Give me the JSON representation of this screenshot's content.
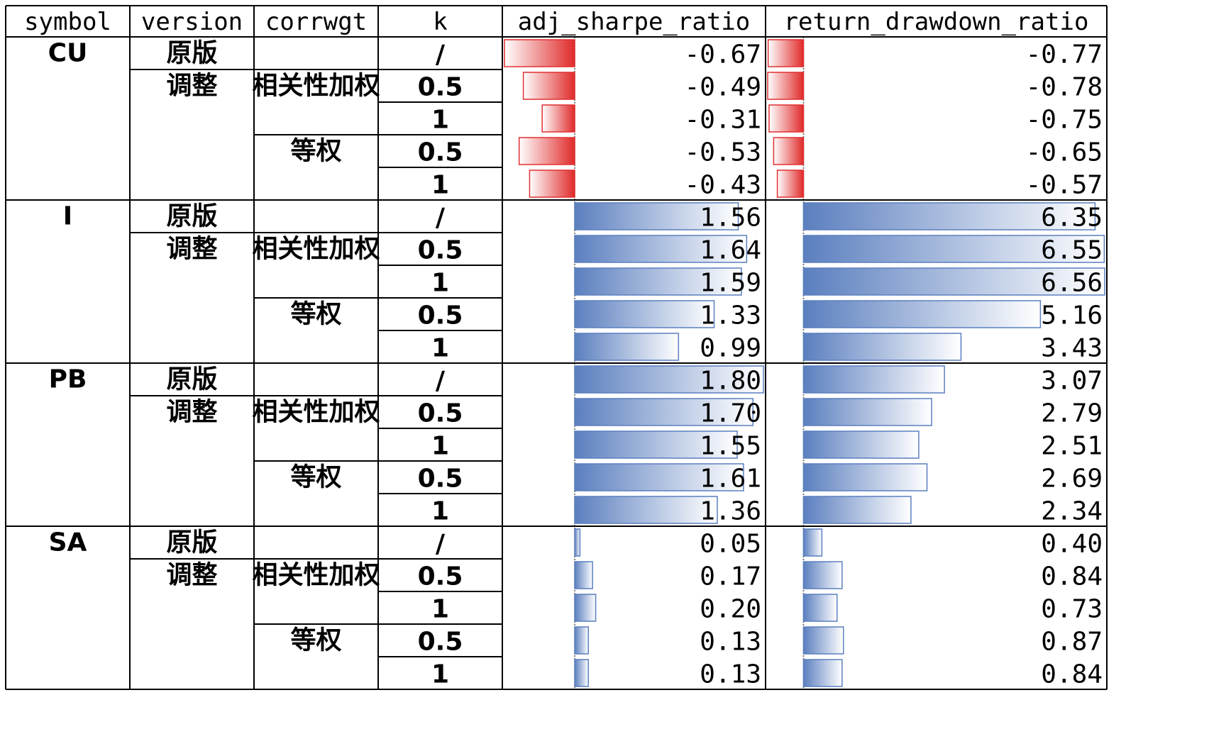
{
  "chart_data": {
    "type": "table",
    "columns": [
      "symbol",
      "version",
      "corrwgt",
      "k",
      "adj_sharpe_ratio",
      "return_drawdown_ratio"
    ],
    "groups": [
      {
        "symbol": "CU",
        "rows": [
          {
            "version": "原版",
            "corrwgt": "",
            "k": "/",
            "adj_sharpe_ratio": -0.67,
            "return_drawdown_ratio": -0.77
          },
          {
            "version": "调整",
            "corrwgt": "相关性加权",
            "k": "0.5",
            "adj_sharpe_ratio": -0.49,
            "return_drawdown_ratio": -0.78
          },
          {
            "version": "",
            "corrwgt": "",
            "k": "1",
            "adj_sharpe_ratio": -0.31,
            "return_drawdown_ratio": -0.75
          },
          {
            "version": "",
            "corrwgt": "等权",
            "k": "0.5",
            "adj_sharpe_ratio": -0.53,
            "return_drawdown_ratio": -0.65
          },
          {
            "version": "",
            "corrwgt": "",
            "k": "1",
            "adj_sharpe_ratio": -0.43,
            "return_drawdown_ratio": -0.57
          }
        ]
      },
      {
        "symbol": "I",
        "rows": [
          {
            "version": "原版",
            "corrwgt": "",
            "k": "/",
            "adj_sharpe_ratio": 1.56,
            "return_drawdown_ratio": 6.35
          },
          {
            "version": "调整",
            "corrwgt": "相关性加权",
            "k": "0.5",
            "adj_sharpe_ratio": 1.64,
            "return_drawdown_ratio": 6.55
          },
          {
            "version": "",
            "corrwgt": "",
            "k": "1",
            "adj_sharpe_ratio": 1.59,
            "return_drawdown_ratio": 6.56
          },
          {
            "version": "",
            "corrwgt": "等权",
            "k": "0.5",
            "adj_sharpe_ratio": 1.33,
            "return_drawdown_ratio": 5.16
          },
          {
            "version": "",
            "corrwgt": "",
            "k": "1",
            "adj_sharpe_ratio": 0.99,
            "return_drawdown_ratio": 3.43
          }
        ]
      },
      {
        "symbol": "PB",
        "rows": [
          {
            "version": "原版",
            "corrwgt": "",
            "k": "/",
            "adj_sharpe_ratio": 1.8,
            "return_drawdown_ratio": 3.07
          },
          {
            "version": "调整",
            "corrwgt": "相关性加权",
            "k": "0.5",
            "adj_sharpe_ratio": 1.7,
            "return_drawdown_ratio": 2.79
          },
          {
            "version": "",
            "corrwgt": "",
            "k": "1",
            "adj_sharpe_ratio": 1.55,
            "return_drawdown_ratio": 2.51
          },
          {
            "version": "",
            "corrwgt": "等权",
            "k": "0.5",
            "adj_sharpe_ratio": 1.61,
            "return_drawdown_ratio": 2.69
          },
          {
            "version": "",
            "corrwgt": "",
            "k": "1",
            "adj_sharpe_ratio": 1.36,
            "return_drawdown_ratio": 2.34
          }
        ]
      },
      {
        "symbol": "SA",
        "rows": [
          {
            "version": "原版",
            "corrwgt": "",
            "k": "/",
            "adj_sharpe_ratio": 0.05,
            "return_drawdown_ratio": 0.4
          },
          {
            "version": "调整",
            "corrwgt": "相关性加权",
            "k": "0.5",
            "adj_sharpe_ratio": 0.17,
            "return_drawdown_ratio": 0.84
          },
          {
            "version": "",
            "corrwgt": "",
            "k": "1",
            "adj_sharpe_ratio": 0.2,
            "return_drawdown_ratio": 0.73
          },
          {
            "version": "",
            "corrwgt": "等权",
            "k": "0.5",
            "adj_sharpe_ratio": 0.13,
            "return_drawdown_ratio": 0.87
          },
          {
            "version": "",
            "corrwgt": "",
            "k": "1",
            "adj_sharpe_ratio": 0.13,
            "return_drawdown_ratio": 0.84
          }
        ]
      }
    ],
    "data_bars": {
      "adj_sharpe_ratio": {
        "axis_min": -0.67,
        "axis_max": 1.8,
        "negative_color": "#e03030",
        "positive_color": "#5b7fbf"
      },
      "return_drawdown_ratio": {
        "axis_min": -0.78,
        "axis_max": 6.56,
        "negative_color": "#e03030",
        "positive_color": "#5b7fbf"
      }
    },
    "number_format": "0.00"
  }
}
